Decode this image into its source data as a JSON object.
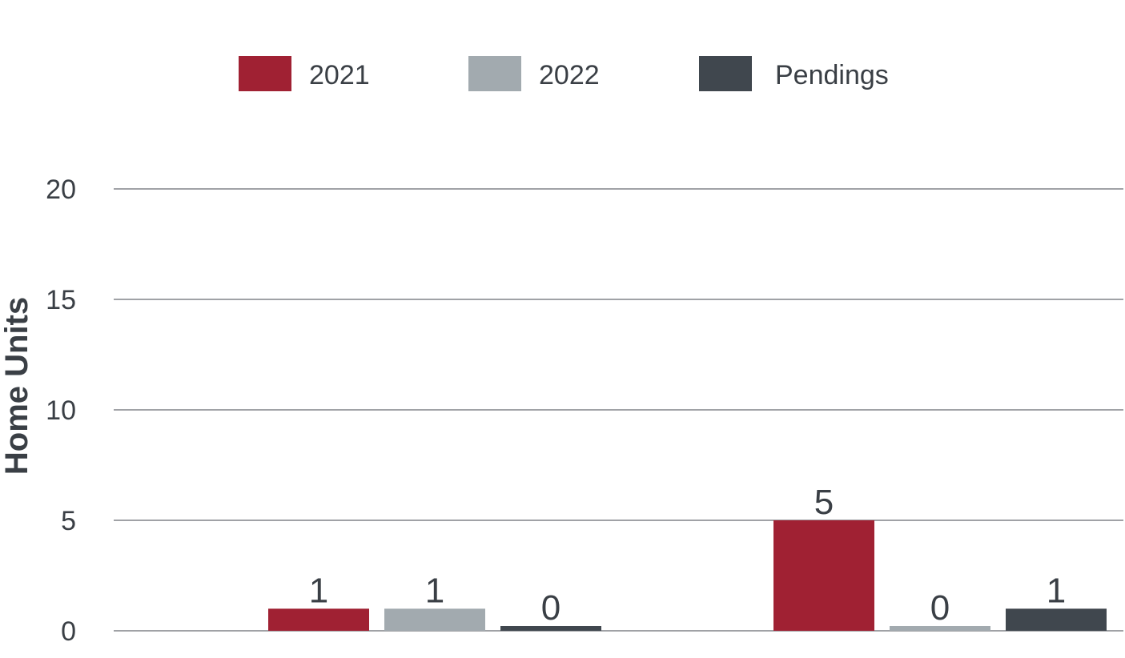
{
  "chart_data": {
    "type": "bar",
    "title": "",
    "xlabel": "",
    "ylabel": "Home Units",
    "ylim": [
      0,
      20
    ],
    "yticks": [
      0,
      5,
      10,
      15,
      20
    ],
    "grid": true,
    "legend_position": "top",
    "groups": 2,
    "series": [
      {
        "name": "2021",
        "color": "#a02133",
        "values": [
          1,
          5
        ]
      },
      {
        "name": "2022",
        "color": "#a2aaaf",
        "values": [
          1,
          0
        ]
      },
      {
        "name": "Pendings",
        "color": "#40474e",
        "values": [
          0,
          1
        ]
      }
    ]
  }
}
